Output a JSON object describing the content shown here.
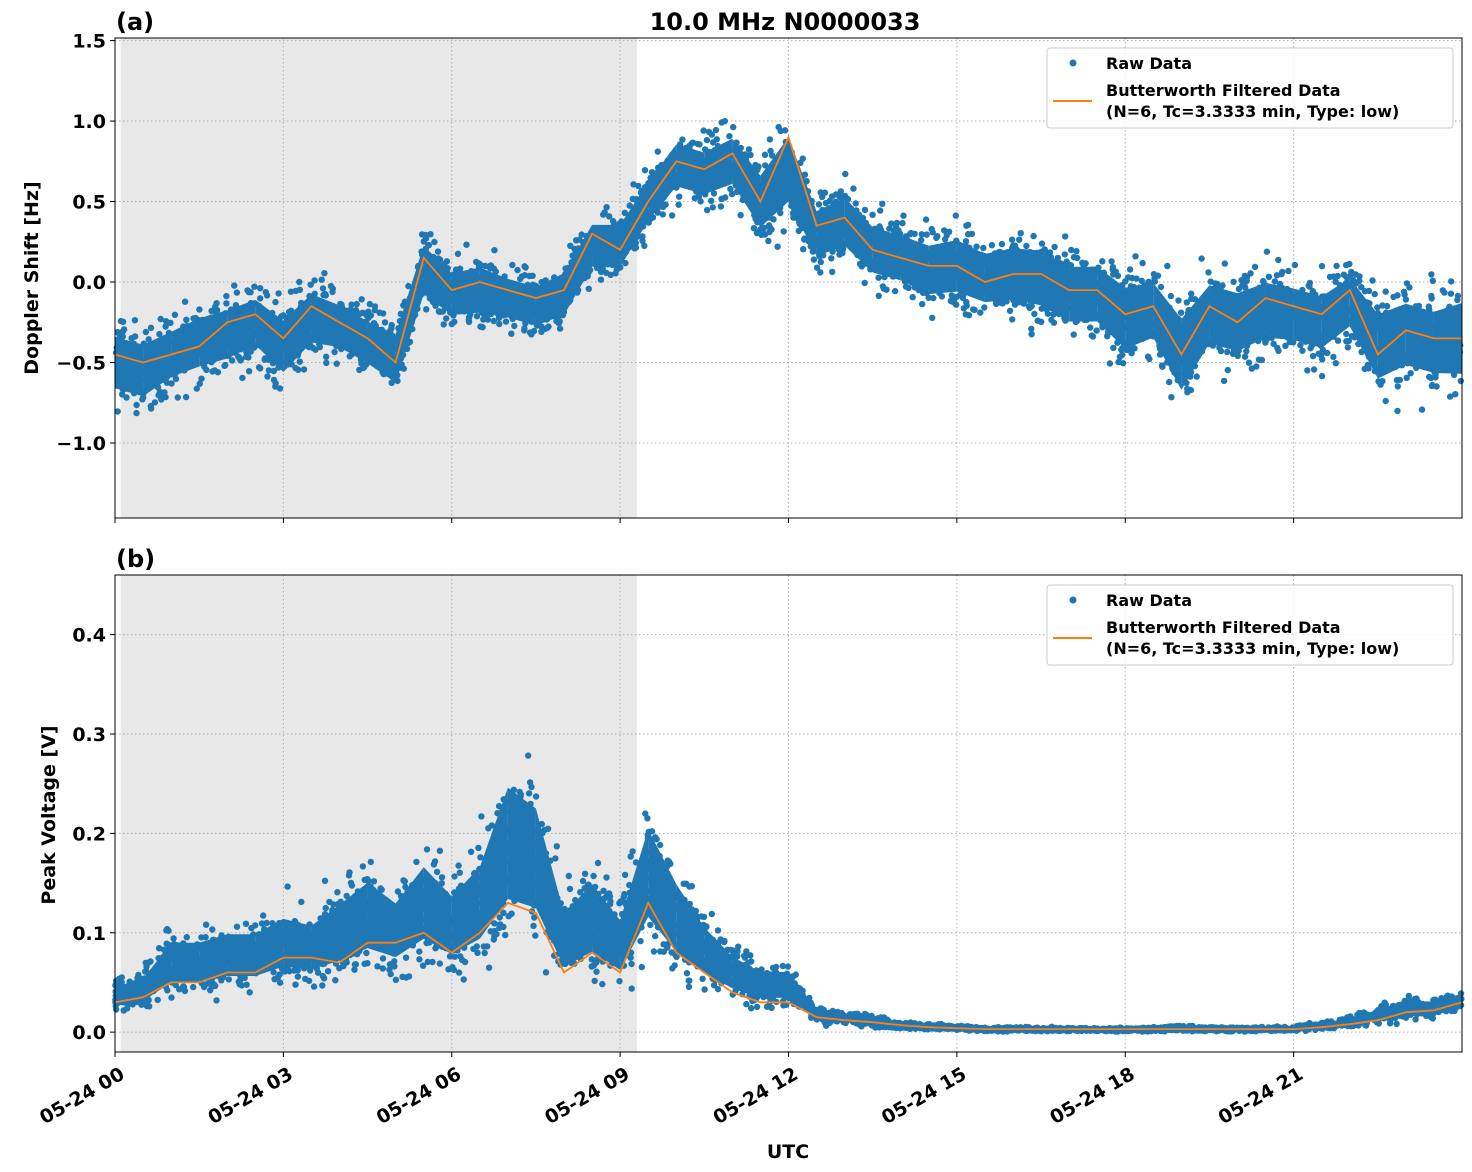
{
  "chart_data": [
    {
      "type": "scatter+line",
      "panel_label": "(a)",
      "title": "10.0 MHz N0000033",
      "xlabel": "",
      "ylabel": "Doppler Shift [Hz]",
      "x_unit": "hours UTC since 05-24 00",
      "xlim": [
        0,
        24
      ],
      "ylim": [
        -1.466,
        1.516
      ],
      "yticks": [
        -1.0,
        -0.5,
        0.0,
        0.5,
        1.0,
        1.5
      ],
      "ytick_labels": [
        "−1.0",
        "−0.5",
        "0.0",
        "0.5",
        "1.0",
        "1.5"
      ],
      "grid": true,
      "shaded_interval_hours": [
        0.1,
        9.3
      ],
      "legend_position": "top-right",
      "legend": [
        "Raw Data",
        "Butterworth Filtered Data",
        "(N=6, Tc=3.3333 min, Type: low)"
      ],
      "x": [
        0,
        0.5,
        1,
        1.5,
        2,
        2.5,
        3,
        3.5,
        4,
        4.5,
        5,
        5.5,
        6,
        6.5,
        7,
        7.5,
        8,
        8.5,
        9,
        9.5,
        10,
        10.5,
        11,
        11.5,
        12,
        12.5,
        13,
        13.5,
        14,
        14.5,
        15,
        15.5,
        16,
        16.5,
        17,
        17.5,
        18,
        18.5,
        19,
        19.5,
        20,
        20.5,
        21,
        21.5,
        22,
        22.5,
        23,
        23.5,
        24
      ],
      "series": [
        {
          "name": "Butterworth Filtered Data",
          "kind": "line",
          "color": "#ff7f0e",
          "values": [
            -0.45,
            -0.5,
            -0.45,
            -0.4,
            -0.25,
            -0.2,
            -0.35,
            -0.15,
            -0.25,
            -0.35,
            -0.5,
            0.15,
            -0.05,
            0.0,
            -0.05,
            -0.1,
            -0.05,
            0.3,
            0.2,
            0.5,
            0.75,
            0.7,
            0.8,
            0.5,
            0.9,
            0.35,
            0.4,
            0.2,
            0.15,
            0.1,
            0.1,
            0.0,
            0.05,
            0.05,
            -0.05,
            -0.05,
            -0.2,
            -0.15,
            -0.45,
            -0.15,
            -0.25,
            -0.1,
            -0.15,
            -0.2,
            -0.05,
            -0.45,
            -0.3,
            -0.35,
            -0.35
          ]
        },
        {
          "name": "Raw Data",
          "kind": "scatter-envelope",
          "color": "#1f77b4",
          "min": [
            -0.9,
            -0.95,
            -0.8,
            -0.75,
            -0.7,
            -0.6,
            -0.8,
            -0.6,
            -0.6,
            -0.7,
            -0.85,
            -0.3,
            -0.4,
            -0.4,
            -0.4,
            -0.45,
            -0.4,
            -0.1,
            -0.1,
            0.2,
            0.4,
            0.35,
            0.4,
            0.1,
            0.2,
            -0.05,
            0.0,
            -0.15,
            -0.2,
            -0.3,
            -0.3,
            -0.35,
            -0.35,
            -0.4,
            -0.5,
            -0.5,
            -0.7,
            -0.6,
            -1.0,
            -0.65,
            -0.7,
            -0.6,
            -0.6,
            -0.65,
            -0.5,
            -0.9,
            -0.8,
            -0.85,
            -0.9
          ],
          "max": [
            -0.1,
            -0.15,
            -0.1,
            0.0,
            0.05,
            0.1,
            0.0,
            0.15,
            0.05,
            -0.05,
            -0.1,
            0.45,
            0.25,
            0.3,
            0.2,
            0.15,
            0.25,
            0.55,
            0.55,
            0.8,
            1.05,
            1.0,
            1.1,
            0.9,
            1.2,
            0.65,
            0.75,
            0.55,
            0.5,
            0.45,
            0.5,
            0.4,
            0.45,
            0.45,
            0.35,
            0.35,
            0.25,
            0.25,
            0.1,
            0.25,
            0.2,
            0.25,
            0.2,
            0.15,
            0.25,
            0.1,
            0.15,
            0.1,
            0.2
          ]
        }
      ]
    },
    {
      "type": "scatter+line",
      "panel_label": "(b)",
      "title": "",
      "xlabel": "UTC",
      "ylabel": "Peak Voltage [V]",
      "xlim": [
        0,
        24
      ],
      "ylim": [
        -0.02,
        0.46
      ],
      "yticks": [
        0.0,
        0.1,
        0.2,
        0.3,
        0.4
      ],
      "ytick_labels": [
        "0.0",
        "0.1",
        "0.2",
        "0.3",
        "0.4"
      ],
      "xtick_hours": [
        0,
        3,
        6,
        9,
        12,
        15,
        18,
        21
      ],
      "xtick_labels": [
        "05-24 00",
        "05-24 03",
        "05-24 06",
        "05-24 09",
        "05-24 12",
        "05-24 15",
        "05-24 18",
        "05-24 21"
      ],
      "grid": true,
      "shaded_interval_hours": [
        0.1,
        9.3
      ],
      "legend_position": "top-right",
      "legend": [
        "Raw Data",
        "Butterworth Filtered Data",
        "(N=6, Tc=3.3333 min, Type: low)"
      ],
      "x": [
        0,
        0.5,
        1,
        1.5,
        2,
        2.5,
        3,
        3.5,
        4,
        4.5,
        5,
        5.5,
        6,
        6.5,
        7,
        7.5,
        8,
        8.5,
        9,
        9.5,
        10,
        10.5,
        11,
        11.5,
        12,
        12.5,
        13,
        13.5,
        14,
        14.5,
        15,
        15.5,
        16,
        16.5,
        17,
        17.5,
        18,
        18.5,
        19,
        19.5,
        20,
        20.5,
        21,
        21.5,
        22,
        22.5,
        23,
        23.5,
        24
      ],
      "series": [
        {
          "name": "Butterworth Filtered Data",
          "kind": "line",
          "color": "#ff7f0e",
          "values": [
            0.03,
            0.035,
            0.05,
            0.05,
            0.06,
            0.06,
            0.075,
            0.075,
            0.07,
            0.09,
            0.09,
            0.1,
            0.08,
            0.1,
            0.13,
            0.12,
            0.06,
            0.08,
            0.06,
            0.13,
            0.08,
            0.06,
            0.04,
            0.03,
            0.03,
            0.015,
            0.012,
            0.01,
            0.007,
            0.005,
            0.004,
            0.003,
            0.003,
            0.003,
            0.003,
            0.003,
            0.003,
            0.003,
            0.003,
            0.003,
            0.003,
            0.003,
            0.003,
            0.005,
            0.008,
            0.012,
            0.02,
            0.022,
            0.03
          ]
        },
        {
          "name": "Raw Data",
          "kind": "scatter-envelope",
          "color": "#1f77b4",
          "min": [
            0.012,
            0.015,
            0.02,
            0.02,
            0.025,
            0.025,
            0.03,
            0.03,
            0.03,
            0.035,
            0.035,
            0.04,
            0.035,
            0.04,
            0.05,
            0.05,
            0.025,
            0.03,
            0.025,
            0.05,
            0.03,
            0.025,
            0.02,
            0.015,
            0.015,
            0.006,
            0.005,
            0.003,
            0.002,
            0.001,
            0.001,
            0.0,
            0.0,
            0.0,
            0.0,
            0.0,
            0.0,
            0.0,
            0.0,
            0.0,
            0.0,
            0.0,
            0.0,
            0.001,
            0.002,
            0.004,
            0.008,
            0.01,
            0.012
          ],
          "max": [
            0.06,
            0.07,
            0.12,
            0.12,
            0.13,
            0.13,
            0.15,
            0.14,
            0.17,
            0.2,
            0.17,
            0.22,
            0.18,
            0.22,
            0.33,
            0.3,
            0.16,
            0.2,
            0.15,
            0.27,
            0.2,
            0.14,
            0.1,
            0.08,
            0.08,
            0.03,
            0.025,
            0.018,
            0.012,
            0.01,
            0.008,
            0.006,
            0.006,
            0.006,
            0.005,
            0.005,
            0.005,
            0.006,
            0.008,
            0.006,
            0.006,
            0.006,
            0.007,
            0.012,
            0.018,
            0.03,
            0.04,
            0.04,
            0.05
          ]
        }
      ]
    }
  ]
}
